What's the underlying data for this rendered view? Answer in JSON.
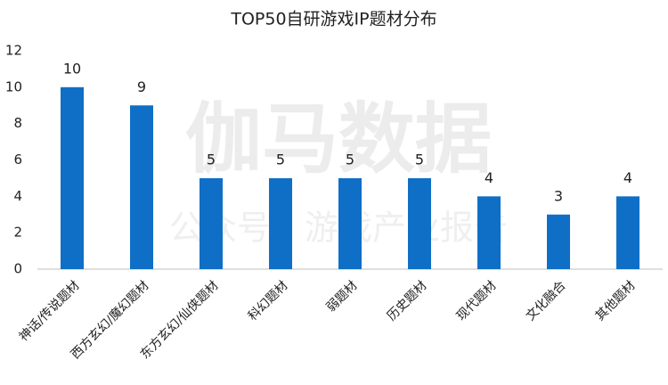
{
  "chart_data": {
    "type": "bar",
    "title": "TOP50自研游戏IP题材分布",
    "watermark": "伽马数据",
    "watermark_subtitle": "公众号：游戏产业报告",
    "categories": [
      "神话/传说题材",
      "西方玄幻/魔幻题材",
      "东方玄幻/仙侠题材",
      "科幻题材",
      "弱题材",
      "历史题材",
      "现代题材",
      "文化融合",
      "其他题材"
    ],
    "values": [
      10,
      9,
      5,
      5,
      5,
      5,
      4,
      3,
      4
    ],
    "color": "#0f6fc6",
    "ylim": [
      0,
      12
    ],
    "yticks": [
      0,
      2,
      4,
      6,
      8,
      10,
      12
    ],
    "grid": false
  }
}
